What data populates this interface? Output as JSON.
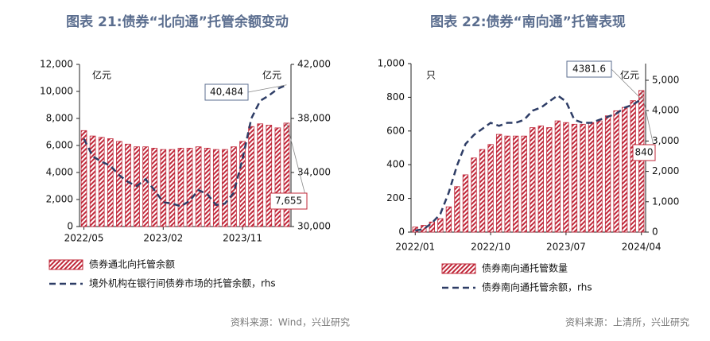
{
  "chart_data": [
    {
      "type": "bar",
      "title": "图表 21:债券“北向通”托管余额变动",
      "y_unit": "亿元",
      "y2_unit": "亿元",
      "categories": [
        "2022/05",
        null,
        null,
        null,
        null,
        null,
        null,
        null,
        null,
        "2023/02",
        null,
        null,
        null,
        null,
        null,
        null,
        null,
        null,
        "2023/11",
        null,
        null,
        null,
        null,
        null
      ],
      "series": [
        {
          "name": "债券通北向托管余额",
          "type": "bar",
          "color": "#c0283a",
          "values": [
            7100,
            6700,
            6600,
            6500,
            6300,
            6100,
            5900,
            5900,
            5800,
            5700,
            5700,
            5800,
            5800,
            5900,
            5800,
            5700,
            5700,
            5900,
            6300,
            7400,
            7600,
            7500,
            7300,
            7655
          ]
        },
        {
          "name": "境外机构在银行间债券市场的托管余额，rhs",
          "type": "line",
          "axis": "y2",
          "color": "#2e3d66",
          "values": [
            36500,
            35200,
            34800,
            34500,
            33800,
            33300,
            33000,
            33500,
            32700,
            31800,
            31700,
            31500,
            31900,
            32700,
            32400,
            31600,
            31700,
            32500,
            35000,
            38000,
            39300,
            39700,
            40200,
            40484
          ]
        }
      ],
      "annotations": [
        "40,484",
        "7,655"
      ],
      "ylim": [
        0,
        12000
      ],
      "yticks": [
        0,
        {
          "value": 2000,
          "label": "2,000"
        },
        {
          "value": 4000,
          "label": "4,000"
        },
        {
          "value": 6000,
          "label": "6,000"
        },
        {
          "value": 8000,
          "label": "8,000"
        },
        {
          "value": 10000,
          "label": "10,000"
        },
        {
          "value": 12000,
          "label": "12,000"
        }
      ],
      "y2lim": [
        30000,
        42000
      ],
      "y2ticks": [
        {
          "value": 30000,
          "label": "30,000"
        },
        {
          "value": 34000,
          "label": "34,000"
        },
        {
          "value": 38000,
          "label": "38,000"
        },
        {
          "value": 42000,
          "label": "42,000"
        }
      ],
      "source": "资料来源：Wind，兴业研究"
    },
    {
      "type": "bar",
      "title": "图表 22:债券“南向通”托管表现",
      "y_unit": "只",
      "y2_unit": "亿元",
      "categories": [
        "2022/01",
        null,
        null,
        null,
        null,
        null,
        null,
        null,
        null,
        "2022/10",
        null,
        null,
        null,
        null,
        null,
        null,
        null,
        null,
        "2023/07",
        null,
        null,
        null,
        null,
        null,
        null,
        null,
        null,
        "2024/04"
      ],
      "series": [
        {
          "name": "债券南向通托管数量",
          "type": "bar",
          "color": "#c0283a",
          "values": [
            30,
            40,
            60,
            80,
            150,
            270,
            340,
            440,
            490,
            520,
            580,
            570,
            570,
            570,
            620,
            630,
            620,
            660,
            650,
            640,
            640,
            650,
            660,
            690,
            720,
            740,
            780,
            840
          ]
        },
        {
          "name": "债券南向通托管余额，rhs",
          "type": "line",
          "axis": "y2",
          "color": "#2e3d66",
          "values": [
            50,
            100,
            300,
            600,
            1300,
            2200,
            2900,
            3200,
            3400,
            3600,
            3500,
            3600,
            3600,
            3700,
            4000,
            4100,
            4300,
            4500,
            4300,
            3700,
            3600,
            3600,
            3700,
            3800,
            3900,
            4100,
            4200,
            4381.6
          ]
        }
      ],
      "annotations": [
        "4381.6",
        "840"
      ],
      "ylim": [
        0,
        1000
      ],
      "yticks": [
        0,
        200,
        400,
        600,
        800,
        {
          "value": 1000,
          "label": "1,000"
        }
      ],
      "y2lim": [
        0,
        5550
      ],
      "y2ticks": [
        0,
        {
          "value": 1000,
          "label": "1,000"
        },
        {
          "value": 2000,
          "label": "2,000"
        },
        {
          "value": 3000,
          "label": "3,000"
        },
        {
          "value": 4000,
          "label": "4,000"
        },
        {
          "value": 5000,
          "label": "5,000"
        }
      ],
      "source": "资料来源：上清所，兴业研究"
    }
  ]
}
